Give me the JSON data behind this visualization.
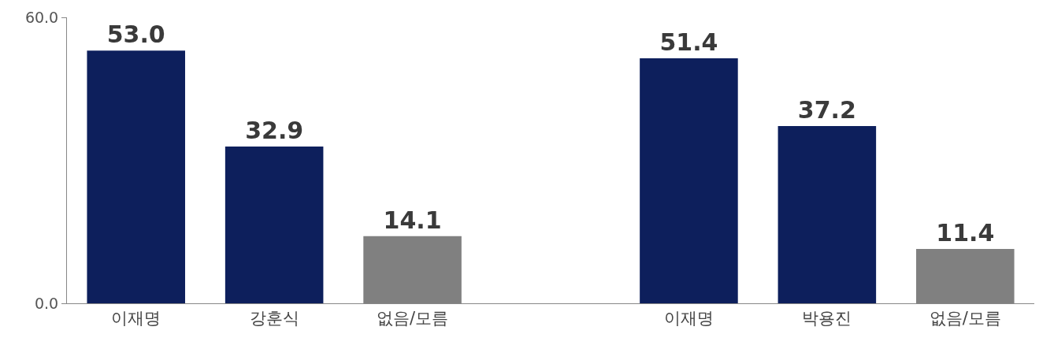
{
  "chart_data": {
    "type": "bar",
    "categories": [
      "이재명",
      "강훈식",
      "없음/모름",
      null,
      "이재명",
      "박용진",
      "없음/모름"
    ],
    "values": [
      53.0,
      32.9,
      14.1,
      null,
      51.4,
      37.2,
      11.4
    ],
    "colors": [
      "#0d1f5c",
      "#0d1f5c",
      "#808080",
      null,
      "#0d1f5c",
      "#0d1f5c",
      "#808080"
    ],
    "value_labels": [
      "53.0",
      "32.9",
      "14.1",
      null,
      "51.4",
      "37.2",
      "11.4"
    ],
    "ylim": [
      0,
      60
    ],
    "yticks": [
      {
        "value": 0,
        "label": "0.0"
      },
      {
        "value": 60,
        "label": "60.0"
      }
    ]
  }
}
